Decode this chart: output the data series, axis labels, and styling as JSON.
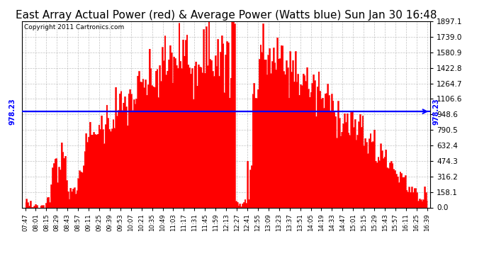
{
  "title": "East Array Actual Power (red) & Average Power (Watts blue) Sun Jan 30 16:48",
  "copyright": "Copyright 2011 Cartronics.com",
  "avg_power": 978.23,
  "ymax": 1897.1,
  "ymin": 0.0,
  "yticks": [
    0.0,
    158.1,
    316.2,
    474.3,
    632.4,
    790.5,
    948.6,
    1106.6,
    1264.7,
    1422.8,
    1580.9,
    1739.0,
    1897.1
  ],
  "bar_color": "#FF0000",
  "avg_line_color": "#0000FF",
  "bg_color": "#FFFFFF",
  "plot_bg_color": "#FFFFFF",
  "grid_color": "#AAAAAA",
  "title_fontsize": 11,
  "xtick_labels": [
    "07:47",
    "08:01",
    "08:15",
    "08:29",
    "08:43",
    "08:57",
    "09:11",
    "09:25",
    "09:39",
    "09:53",
    "10:07",
    "10:21",
    "10:35",
    "10:49",
    "11:03",
    "11:17",
    "11:31",
    "11:45",
    "11:59",
    "12:13",
    "12:27",
    "12:41",
    "12:55",
    "13:09",
    "13:23",
    "13:37",
    "13:51",
    "14:05",
    "14:19",
    "14:33",
    "14:47",
    "15:01",
    "15:15",
    "15:29",
    "15:43",
    "15:57",
    "16:11",
    "16:25",
    "16:39"
  ]
}
